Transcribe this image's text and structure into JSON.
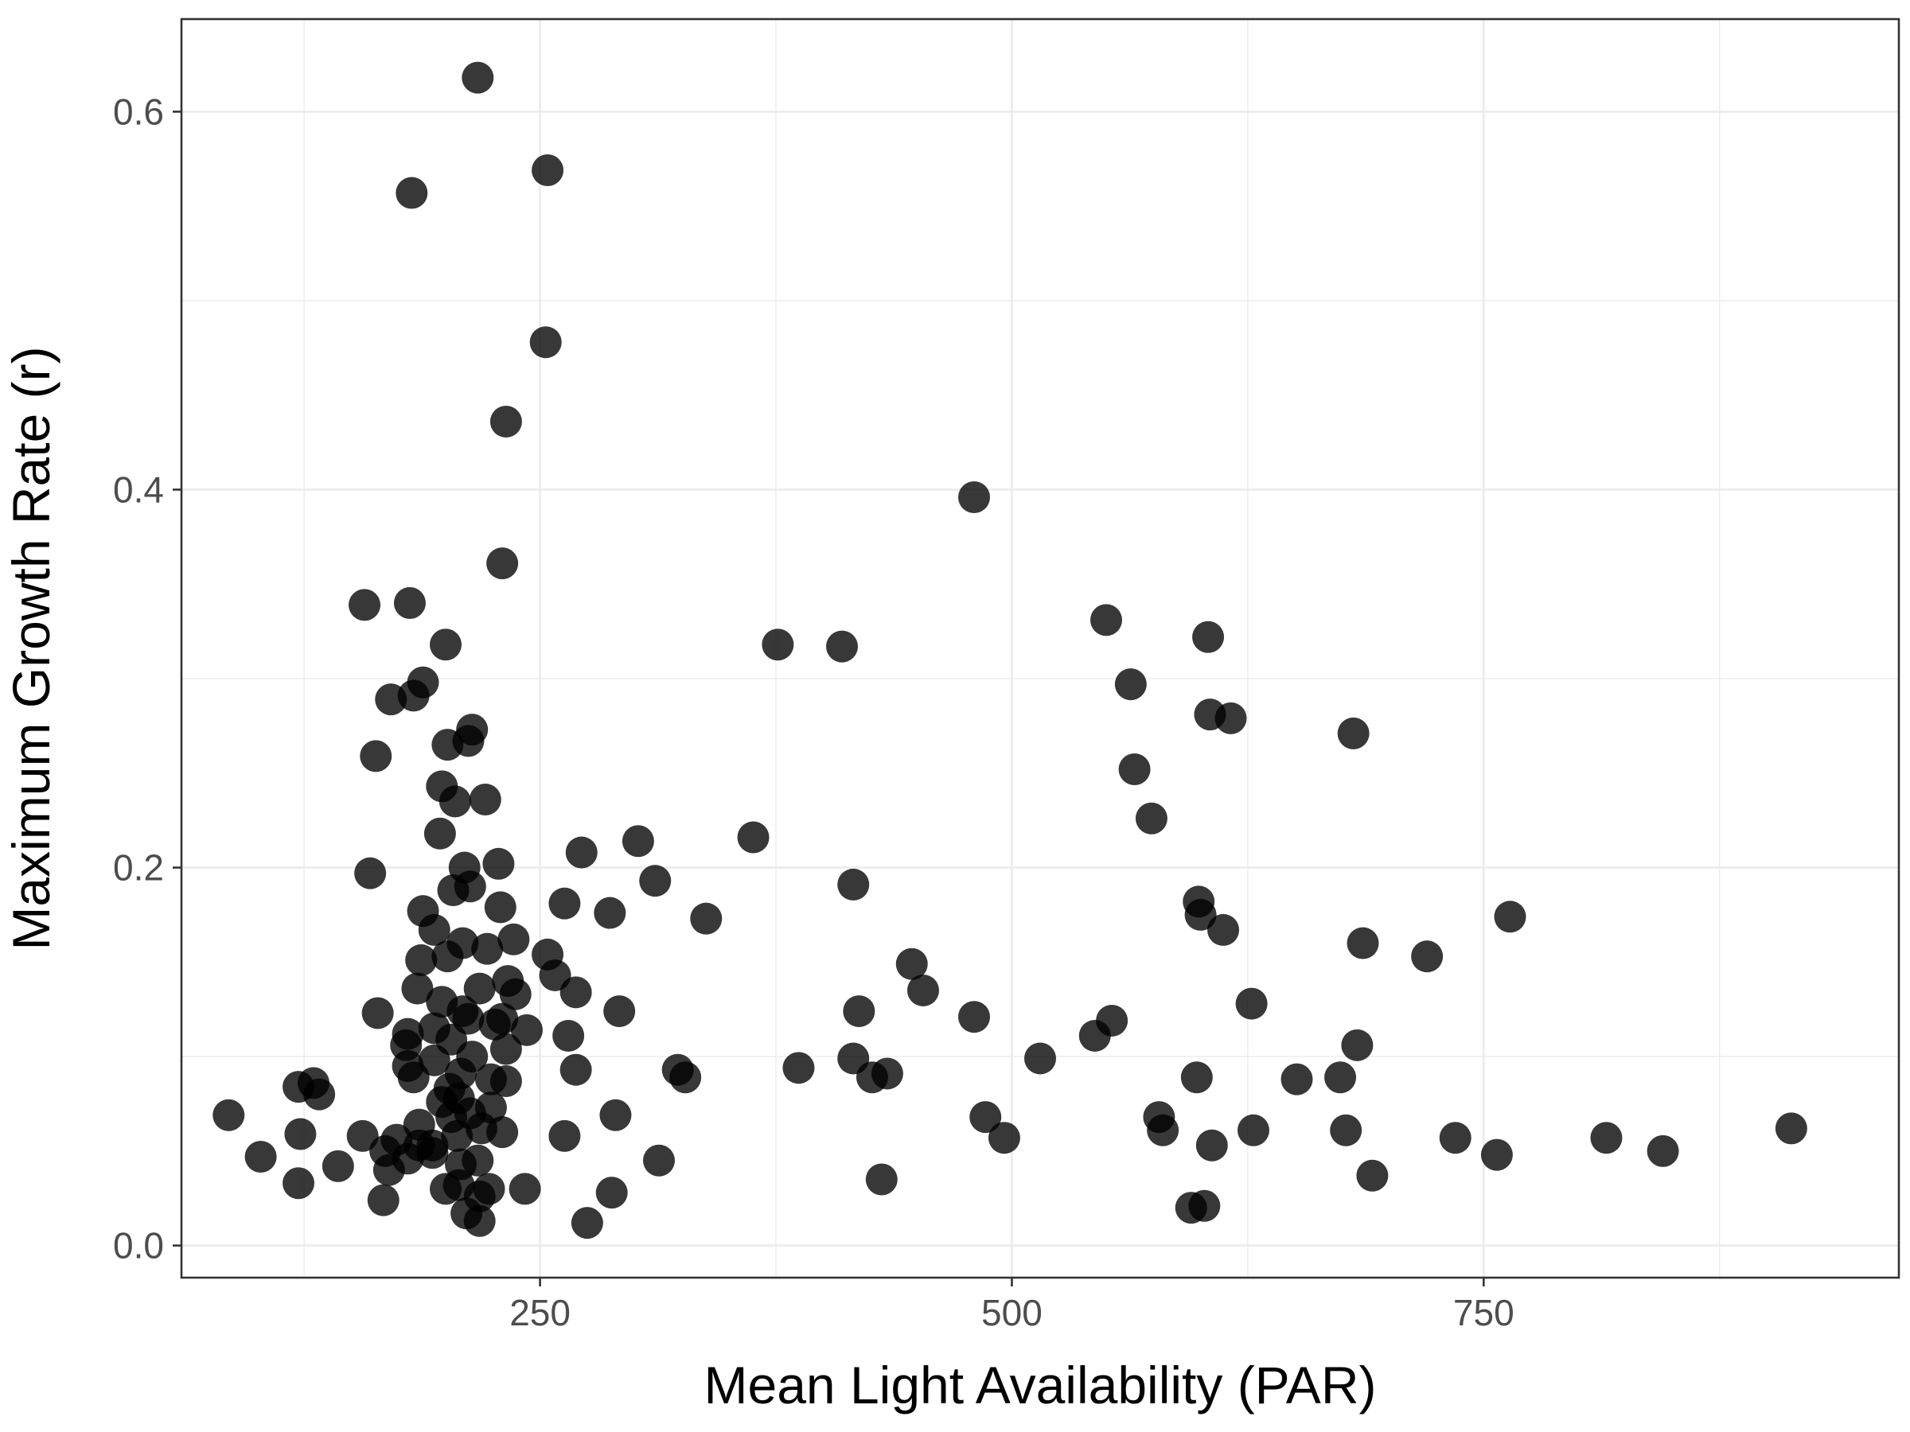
{
  "chart_data": {
    "type": "scatter",
    "xlabel": "Mean Light Availability (PAR)",
    "ylabel": "Maximum Growth Rate (r)",
    "xlim": [
      60,
      970
    ],
    "ylim": [
      -0.017,
      0.649
    ],
    "x_ticks": [
      250,
      500,
      750
    ],
    "x_tick_labels": [
      "250",
      "500",
      "750"
    ],
    "x_minor_ticks": [
      125,
      375,
      625,
      875
    ],
    "y_ticks": [
      0.0,
      0.2,
      0.4,
      0.6
    ],
    "y_tick_labels": [
      "0.0",
      "0.2",
      "0.4",
      "0.6"
    ],
    "y_minor_ticks": [
      0.1,
      0.3,
      0.5
    ],
    "grid": true,
    "point_color": "#000000",
    "points": [
      [
        217,
        0.618
      ],
      [
        254,
        0.569
      ],
      [
        182,
        0.557
      ],
      [
        253,
        0.478
      ],
      [
        232,
        0.436
      ],
      [
        480,
        0.396
      ],
      [
        230,
        0.361
      ],
      [
        157,
        0.339
      ],
      [
        181,
        0.34
      ],
      [
        200,
        0.318
      ],
      [
        550,
        0.331
      ],
      [
        604,
        0.322
      ],
      [
        376,
        0.318
      ],
      [
        410,
        0.317
      ],
      [
        188,
        0.298
      ],
      [
        183,
        0.291
      ],
      [
        171,
        0.289
      ],
      [
        563,
        0.297
      ],
      [
        605,
        0.281
      ],
      [
        616,
        0.279
      ],
      [
        681,
        0.271
      ],
      [
        214,
        0.273
      ],
      [
        212,
        0.267
      ],
      [
        201,
        0.265
      ],
      [
        163,
        0.259
      ],
      [
        565,
        0.252
      ],
      [
        198,
        0.243
      ],
      [
        221,
        0.236
      ],
      [
        205,
        0.235
      ],
      [
        574,
        0.226
      ],
      [
        197,
        0.218
      ],
      [
        363,
        0.216
      ],
      [
        302,
        0.214
      ],
      [
        272,
        0.208
      ],
      [
        228,
        0.202
      ],
      [
        210,
        0.2
      ],
      [
        160,
        0.197
      ],
      [
        311,
        0.193
      ],
      [
        416,
        0.191
      ],
      [
        213,
        0.19
      ],
      [
        204,
        0.188
      ],
      [
        599,
        0.182
      ],
      [
        263,
        0.181
      ],
      [
        229,
        0.179
      ],
      [
        188,
        0.177
      ],
      [
        287,
        0.176
      ],
      [
        600,
        0.175
      ],
      [
        764,
        0.174
      ],
      [
        338,
        0.173
      ],
      [
        194,
        0.167
      ],
      [
        612,
        0.167
      ],
      [
        236,
        0.162
      ],
      [
        209,
        0.16
      ],
      [
        686,
        0.16
      ],
      [
        222,
        0.157
      ],
      [
        201,
        0.153
      ],
      [
        254,
        0.154
      ],
      [
        720,
        0.153
      ],
      [
        187,
        0.151
      ],
      [
        447,
        0.149
      ],
      [
        258,
        0.143
      ],
      [
        233,
        0.14
      ],
      [
        218,
        0.136
      ],
      [
        185,
        0.136
      ],
      [
        237,
        0.133
      ],
      [
        269,
        0.134
      ],
      [
        453,
        0.135
      ],
      [
        198,
        0.129
      ],
      [
        164,
        0.123
      ],
      [
        209,
        0.124
      ],
      [
        292,
        0.124
      ],
      [
        419,
        0.124
      ],
      [
        480,
        0.121
      ],
      [
        212,
        0.12
      ],
      [
        230,
        0.12
      ],
      [
        553,
        0.119
      ],
      [
        243,
        0.114
      ],
      [
        194,
        0.115
      ],
      [
        226,
        0.117
      ],
      [
        627,
        0.128
      ],
      [
        180,
        0.112
      ],
      [
        265,
        0.111
      ],
      [
        544,
        0.111
      ],
      [
        203,
        0.109
      ],
      [
        179,
        0.106
      ],
      [
        683,
        0.106
      ],
      [
        232,
        0.104
      ],
      [
        214,
        0.1
      ],
      [
        416,
        0.099
      ],
      [
        194,
        0.098
      ],
      [
        515,
        0.099
      ],
      [
        387,
        0.094
      ],
      [
        180,
        0.095
      ],
      [
        269,
        0.093
      ],
      [
        323,
        0.093
      ],
      [
        208,
        0.091
      ],
      [
        327,
        0.089
      ],
      [
        434,
        0.091
      ],
      [
        183,
        0.089
      ],
      [
        232,
        0.087
      ],
      [
        426,
        0.089
      ],
      [
        598,
        0.089
      ],
      [
        651,
        0.088
      ],
      [
        674,
        0.089
      ],
      [
        122,
        0.084
      ],
      [
        130,
        0.086
      ],
      [
        202,
        0.083
      ],
      [
        224,
        0.088
      ],
      [
        133,
        0.08
      ],
      [
        207,
        0.078
      ],
      [
        198,
        0.076
      ],
      [
        224,
        0.073
      ],
      [
        213,
        0.07
      ],
      [
        85,
        0.069
      ],
      [
        203,
        0.068
      ],
      [
        290,
        0.069
      ],
      [
        486,
        0.068
      ],
      [
        578,
        0.068
      ],
      [
        186,
        0.064
      ],
      [
        230,
        0.06
      ],
      [
        219,
        0.062
      ],
      [
        206,
        0.058
      ],
      [
        123,
        0.059
      ],
      [
        263,
        0.058
      ],
      [
        156,
        0.058
      ],
      [
        174,
        0.056
      ],
      [
        496,
        0.057
      ],
      [
        580,
        0.061
      ],
      [
        628,
        0.061
      ],
      [
        677,
        0.061
      ],
      [
        735,
        0.057
      ],
      [
        815,
        0.057
      ],
      [
        913,
        0.062
      ],
      [
        186,
        0.053
      ],
      [
        168,
        0.05
      ],
      [
        193,
        0.053
      ],
      [
        606,
        0.053
      ],
      [
        102,
        0.047
      ],
      [
        143,
        0.042
      ],
      [
        180,
        0.046
      ],
      [
        208,
        0.043
      ],
      [
        217,
        0.045
      ],
      [
        313,
        0.045
      ],
      [
        757,
        0.048
      ],
      [
        845,
        0.05
      ],
      [
        170,
        0.04
      ],
      [
        193,
        0.049
      ],
      [
        122,
        0.033
      ],
      [
        223,
        0.03
      ],
      [
        242,
        0.03
      ],
      [
        200,
        0.03
      ],
      [
        207,
        0.032
      ],
      [
        431,
        0.035
      ],
      [
        691,
        0.037
      ],
      [
        288,
        0.028
      ],
      [
        167,
        0.024
      ],
      [
        218,
        0.026
      ],
      [
        211,
        0.017
      ],
      [
        595,
        0.02
      ],
      [
        602,
        0.021
      ],
      [
        275,
        0.012
      ],
      [
        218,
        0.013
      ]
    ]
  }
}
